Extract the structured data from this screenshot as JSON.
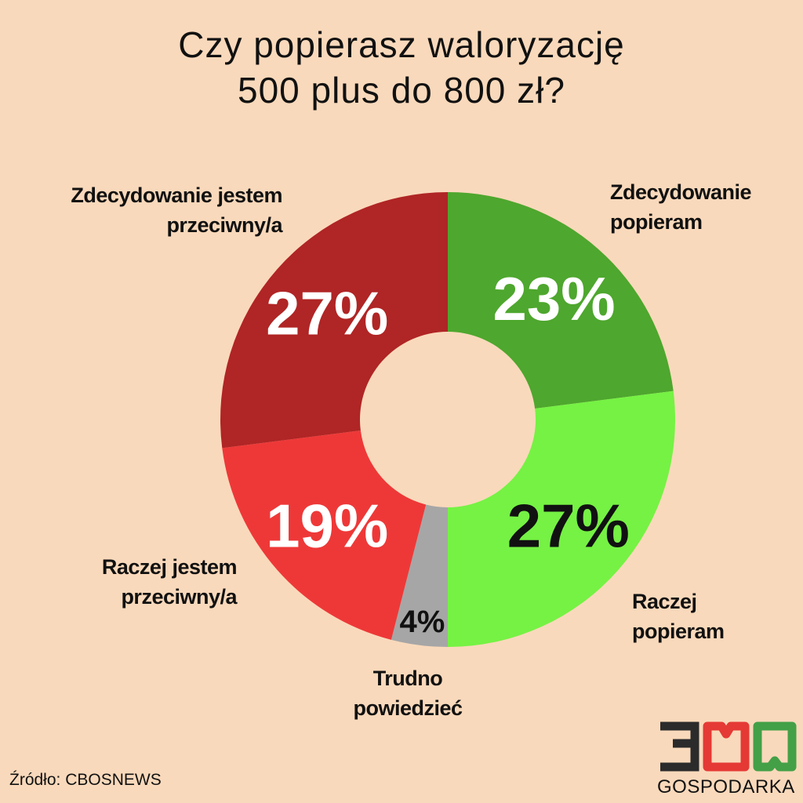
{
  "title": [
    "Czy popierasz waloryzację",
    "500 plus do 800 zł?"
  ],
  "chart_data": {
    "type": "pie",
    "donut": true,
    "start": "top",
    "direction": "clockwise",
    "slices": [
      {
        "label": [
          "Zdecydowanie",
          "popieram"
        ],
        "value": 23,
        "display": "23%",
        "color": "#4ea72e",
        "text_color": "#ffffff"
      },
      {
        "label": [
          "Raczej",
          "popieram"
        ],
        "value": 27,
        "display": "27%",
        "color": "#75f244",
        "text_color": "#111111"
      },
      {
        "label": [
          "Trudno",
          "powiedzieć"
        ],
        "value": 4,
        "display": "4%",
        "color": "#a6a6a6",
        "text_color": "#111111"
      },
      {
        "label": [
          "Raczej jestem",
          "przeciwny/a"
        ],
        "value": 19,
        "display": "19%",
        "color": "#ee3838",
        "text_color": "#ffffff"
      },
      {
        "label": [
          "Zdecydowanie jestem",
          "przeciwny/a"
        ],
        "value": 27,
        "display": "27%",
        "color": "#b02525",
        "text_color": "#ffffff"
      }
    ]
  },
  "source": "Źródło:  CBOSNEWS",
  "logo": {
    "number": "300",
    "text": "GOSPODARKA",
    "colors": [
      "#2b2b2b",
      "#e53935",
      "#43a047"
    ]
  }
}
